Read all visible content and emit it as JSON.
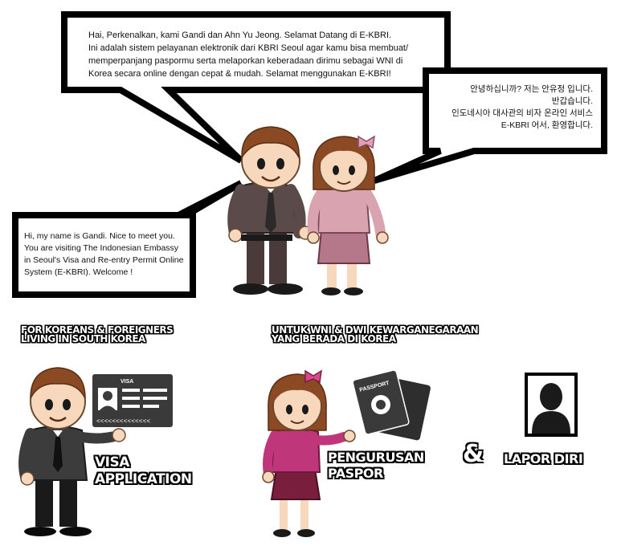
{
  "bubbles": {
    "main": {
      "line1": "Hai, Perkenalkan, kami Gandi dan Ahn Yu Jeong.  Selamat Datang di E-KBRI.",
      "line2": "Ini adalah sistem pelayanan elektronik dari KBRI Seoul  agar kamu bisa membuat/",
      "line3": "memperpanjang paspormu serta  melaporkan keberadaan dirimu sebagai WNI di",
      "line4": "Korea secara online dengan cepat & mudah.  Selamat menggunakan E-KBRI!"
    },
    "korean": {
      "line1": "안녕하십니까? 저는 안유정 입니다.",
      "line2": "반갑습니다.",
      "line3": "인도네시아 대사관의 비자 온라인 서비스",
      "line4": "E-KBRI 어서, 환영합니다."
    },
    "english": {
      "line1": "Hi, my name is Gandi. Nice to meet you.",
      "line2": "You are visiting The Indonesian Embassy",
      "line3": "in Seoul's Visa and Re-entry Permit Online",
      "line4": "System (E-KBRI). Welcome !"
    }
  },
  "sections": {
    "koreans": {
      "heading_line1": "For Koreans & Foreigners",
      "heading_line2": "Living in South Korea",
      "service_line1": "Visa",
      "service_line2": "Application"
    },
    "wni": {
      "heading_line1": "Untuk WNI & Dwi Kewarganegaraan",
      "heading_line2": "yang berada di Korea",
      "paspor_line1": "Pengurusan",
      "paspor_line2": "Paspor",
      "ampersand": "&",
      "lapor": "Lapor Diri"
    }
  },
  "icons": {
    "visa_card": "visa-card-icon",
    "passport": "passport-icon",
    "profile": "profile-silhouette-icon"
  },
  "colors": {
    "man_suit": "#5a4a4a",
    "woman_top": "#d9a3b0",
    "hair": "#8b4a24",
    "woman2_top": "#c0367a",
    "skin": "#f7d8bc"
  }
}
